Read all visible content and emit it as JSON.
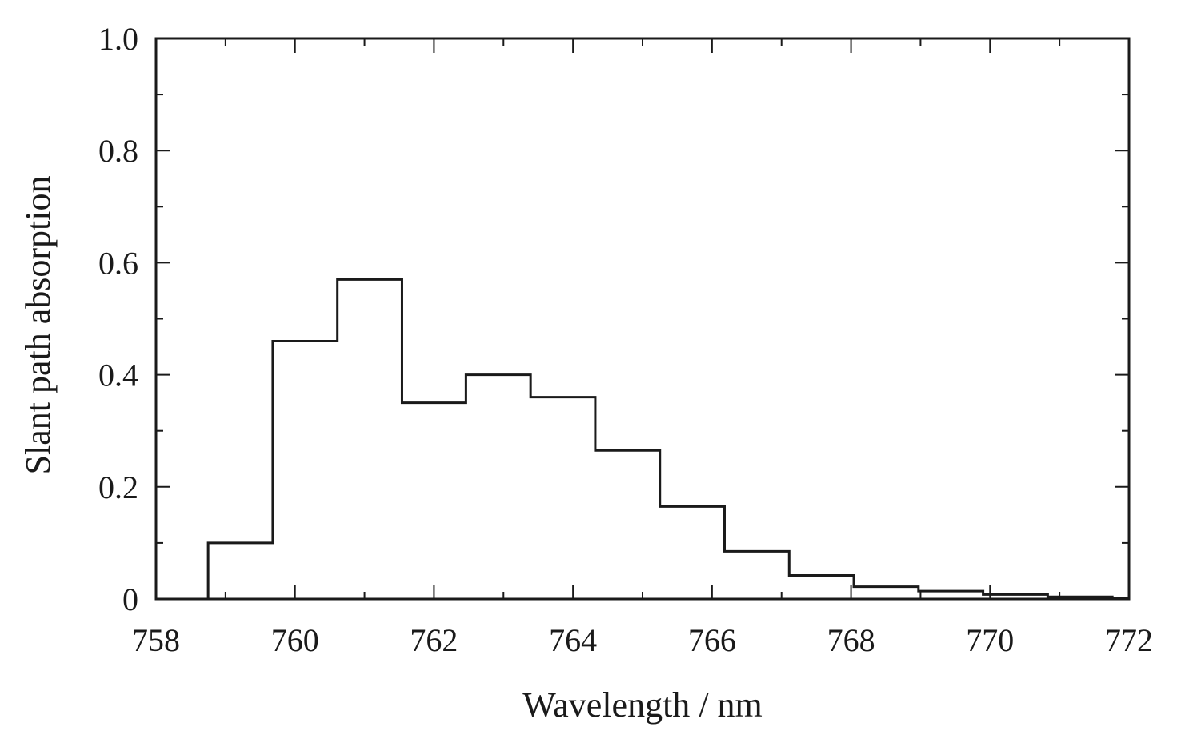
{
  "chart_data": {
    "type": "line",
    "style": "step",
    "xlabel": "Wavelength / nm",
    "ylabel": "Slant path absorption",
    "xlim": [
      758,
      772
    ],
    "ylim": [
      0,
      1.0
    ],
    "x_ticks": [
      758,
      760,
      762,
      764,
      766,
      768,
      770,
      772
    ],
    "x_tick_labels": [
      "758",
      "760",
      "762",
      "764",
      "766",
      "768",
      "770",
      "772"
    ],
    "y_ticks": [
      0,
      0.2,
      0.4,
      0.6,
      0.8,
      1.0
    ],
    "y_tick_labels": [
      "0",
      "0.2",
      "0.4",
      "0.6",
      "0.8",
      "1.0"
    ],
    "grid": false,
    "legend": "none",
    "line_color": "#1a1a1a",
    "series": [
      {
        "bin_edges": [
          758.0,
          758.75,
          759.68,
          760.61,
          761.54,
          762.46,
          763.39,
          764.32,
          765.25,
          766.18,
          767.11,
          768.04,
          768.97,
          769.9,
          770.83,
          771.76,
          772.0
        ],
        "values": [
          0.0,
          0.1,
          0.46,
          0.57,
          0.35,
          0.4,
          0.36,
          0.265,
          0.165,
          0.085,
          0.042,
          0.022,
          0.014,
          0.008,
          0.004,
          0.002
        ]
      }
    ]
  }
}
